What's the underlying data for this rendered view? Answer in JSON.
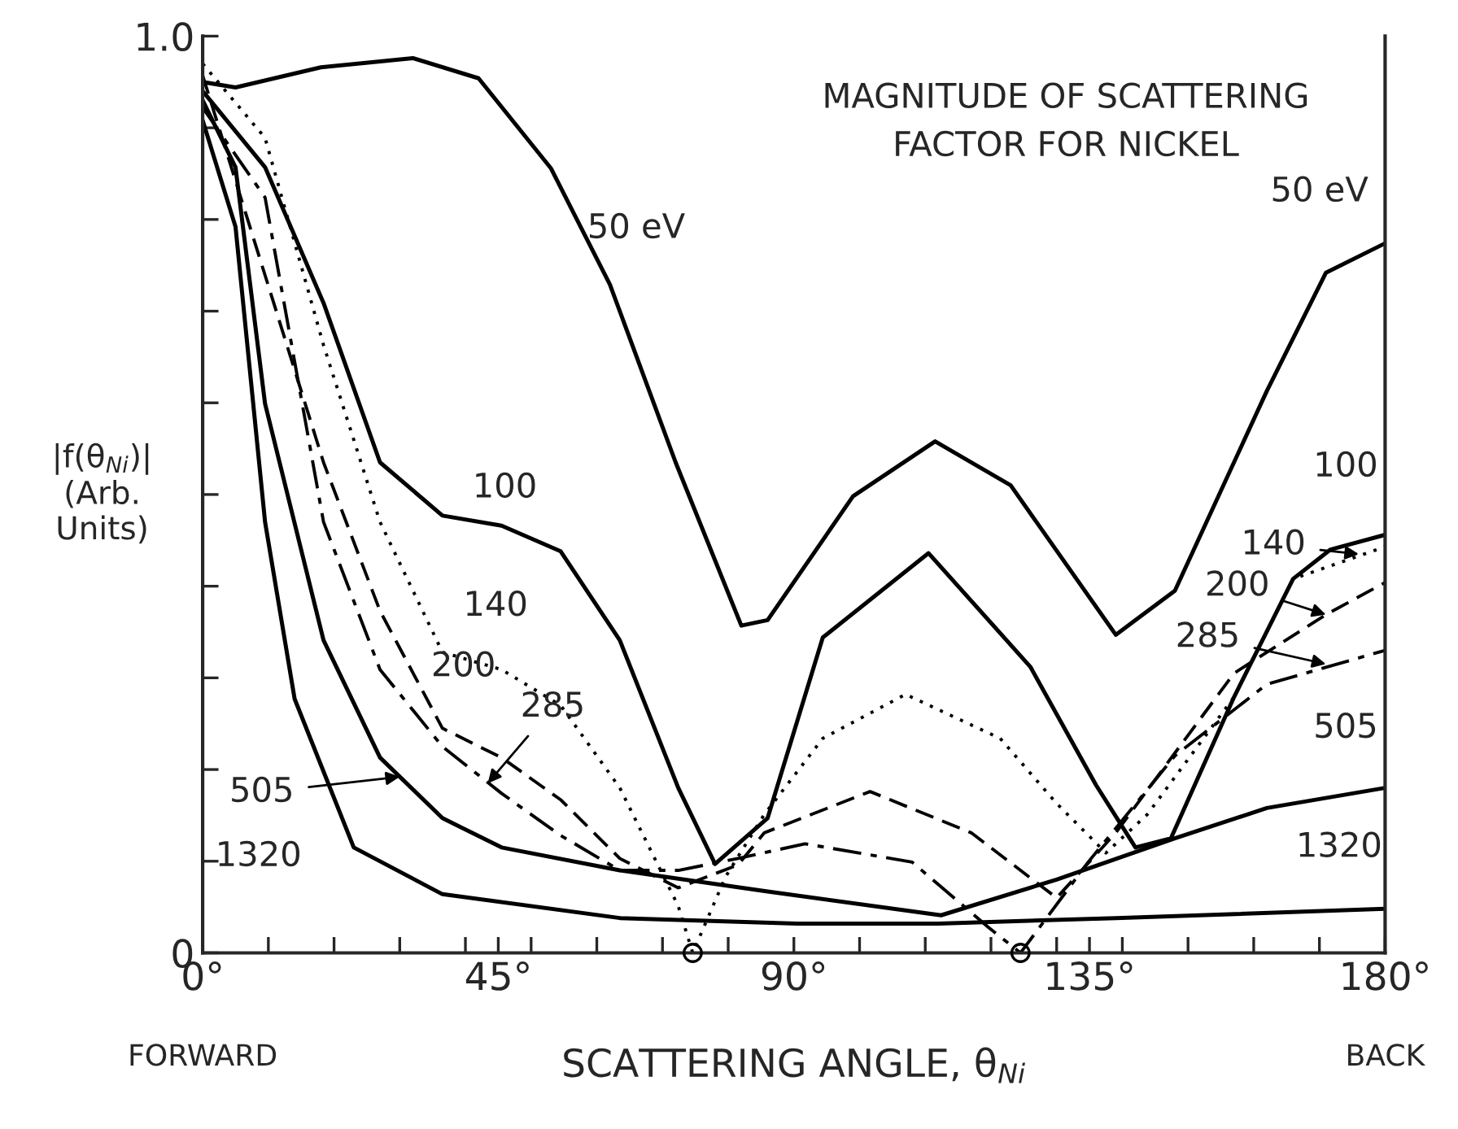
{
  "chart_data": {
    "type": "line",
    "title": "MAGNITUDE OF SCATTERING\nFACTOR FOR NICKEL",
    "xlabel": "SCATTERING ANGLE, θ$_{Ni}$",
    "ylabel": "|f(θ$_{Ni}$)|\n(Arb.\nUnits)",
    "xlim": [
      0,
      180
    ],
    "ylim": [
      0,
      1.0
    ],
    "xticks": [
      {
        "value": 0,
        "label": "0°"
      },
      {
        "value": 10,
        "label": null
      },
      {
        "value": 20,
        "label": null
      },
      {
        "value": 30,
        "label": null
      },
      {
        "value": 40,
        "label": null
      },
      {
        "value": 45,
        "label": "45°"
      },
      {
        "value": 50,
        "label": null
      },
      {
        "value": 60,
        "label": null
      },
      {
        "value": 70,
        "label": null
      },
      {
        "value": 80,
        "label": null
      },
      {
        "value": 90,
        "label": "90°"
      },
      {
        "value": 100,
        "label": null
      },
      {
        "value": 110,
        "label": null
      },
      {
        "value": 120,
        "label": null
      },
      {
        "value": 130,
        "label": null
      },
      {
        "value": 135,
        "label": "135°"
      },
      {
        "value": 140,
        "label": null
      },
      {
        "value": 150,
        "label": null
      },
      {
        "value": 160,
        "label": null
      },
      {
        "value": 170,
        "label": null
      },
      {
        "value": 180,
        "label": "180°"
      }
    ],
    "yticks": [
      {
        "value": 0,
        "label": "0"
      },
      {
        "value": 0.1,
        "label": null
      },
      {
        "value": 0.2,
        "label": null
      },
      {
        "value": 0.3,
        "label": null
      },
      {
        "value": 0.4,
        "label": null
      },
      {
        "value": 0.5,
        "label": null
      },
      {
        "value": 0.6,
        "label": null
      },
      {
        "value": 0.7,
        "label": null
      },
      {
        "value": 0.8,
        "label": null
      },
      {
        "value": 0.9,
        "label": null
      },
      {
        "value": 1.0,
        "label": "1.0"
      }
    ],
    "grid": false,
    "legend": false,
    "marker": "none",
    "series": [
      {
        "color": "#000000",
        "line_style": "solid",
        "x": [
          0,
          5,
          18,
          32,
          42,
          53,
          62,
          72,
          82,
          86,
          99,
          111.5,
          123,
          139,
          148,
          162,
          171,
          180
        ],
        "values": [
          0.95,
          0.944,
          0.966,
          0.976,
          0.954,
          0.856,
          0.729,
          0.535,
          0.357,
          0.363,
          0.498,
          0.558,
          0.51,
          0.347,
          0.395,
          0.613,
          0.742,
          0.774
        ]
      },
      {
        "color": "#000000",
        "line_style": "solid",
        "x": [
          0,
          9.5,
          18.4,
          27,
          36.5,
          45.5,
          54.5,
          63.5,
          72.4,
          78,
          86,
          94.4,
          110.5,
          126,
          136,
          142,
          147.4,
          157,
          166,
          171.7,
          180
        ],
        "values": [
          0.94,
          0.857,
          0.709,
          0.535,
          0.477,
          0.466,
          0.438,
          0.341,
          0.18,
          0.097,
          0.147,
          0.344,
          0.436,
          0.312,
          0.183,
          0.115,
          0.125,
          0.279,
          0.408,
          0.44,
          0.456
        ]
      },
      {
        "color": "#000000",
        "line_style": "dotted",
        "x": [
          0,
          9.5,
          18.4,
          27,
          36.5,
          45.5,
          54.5,
          63.5,
          72.4,
          74.6,
          79.6,
          85.5,
          94.4,
          107,
          121.4,
          130,
          137.5,
          143.8,
          157,
          166,
          180
        ],
        "values": [
          0.97,
          0.889,
          0.663,
          0.47,
          0.328,
          0.309,
          0.27,
          0.18,
          0.051,
          0,
          0.083,
          0.151,
          0.234,
          0.282,
          0.234,
          0.163,
          0.109,
          0.151,
          0.279,
          0.408,
          0.443
        ]
      },
      {
        "color": "#000000",
        "line_style": "dashed",
        "x": [
          0,
          18.4,
          27,
          36.5,
          45.5,
          54.5,
          63.5,
          72.4,
          81.5,
          85.5,
          101.6,
          117,
          130,
          139,
          157,
          171,
          180
        ],
        "values": [
          0.957,
          0.535,
          0.373,
          0.245,
          0.213,
          0.167,
          0.103,
          0.071,
          0.096,
          0.131,
          0.176,
          0.131,
          0.06,
          0.131,
          0.305,
          0.369,
          0.404
        ]
      },
      {
        "color": "#000000",
        "line_style": "dashdot",
        "x": [
          0,
          9.5,
          18.4,
          27,
          36.5,
          45.5,
          54.5,
          63.5,
          72.4,
          81.5,
          91.7,
          108,
          119.6,
          124.5,
          134.8,
          148,
          162,
          180
        ],
        "values": [
          0.922,
          0.824,
          0.47,
          0.309,
          0.225,
          0.174,
          0.128,
          0.09,
          0.09,
          0.103,
          0.119,
          0.099,
          0.028,
          0,
          0.099,
          0.215,
          0.293,
          0.33
        ]
      },
      {
        "color": "#000000",
        "line_style": "solid",
        "x": [
          0,
          5,
          9.5,
          18.4,
          27,
          36.5,
          45.5,
          63.5,
          86,
          112.4,
          130,
          148,
          162,
          180
        ],
        "values": [
          0.93,
          0.857,
          0.599,
          0.341,
          0.213,
          0.147,
          0.115,
          0.09,
          0.067,
          0.041,
          0.08,
          0.125,
          0.158,
          0.18
        ]
      },
      {
        "color": "#000000",
        "line_style": "solid",
        "x": [
          0,
          5,
          9.5,
          14,
          23,
          36.5,
          63.5,
          90.5,
          112,
          139,
          180
        ],
        "values": [
          0.908,
          0.792,
          0.47,
          0.277,
          0.115,
          0.064,
          0.038,
          0.032,
          0.032,
          0.038,
          0.048
        ]
      },
      {
        "type": "scatter",
        "marker": "circle",
        "color": "#000000",
        "x": [
          74.6,
          124.5
        ],
        "values": [
          0,
          0
        ]
      }
    ],
    "annotations": [
      "50 eV",
      "50 eV",
      "100",
      "140",
      "200",
      {
        "text": "285",
        "x": 43.4,
        "y": 0.185
      },
      "505",
      "1320",
      "100",
      {
        "text": "140",
        "x": 176,
        "y": 0.435
      },
      {
        "text": "200",
        "x": 171,
        "y": 0.369
      },
      {
        "text": "285",
        "x": 171,
        "y": 0.315
      },
      "505",
      "1320",
      "FORWARD",
      "BACK"
    ]
  }
}
